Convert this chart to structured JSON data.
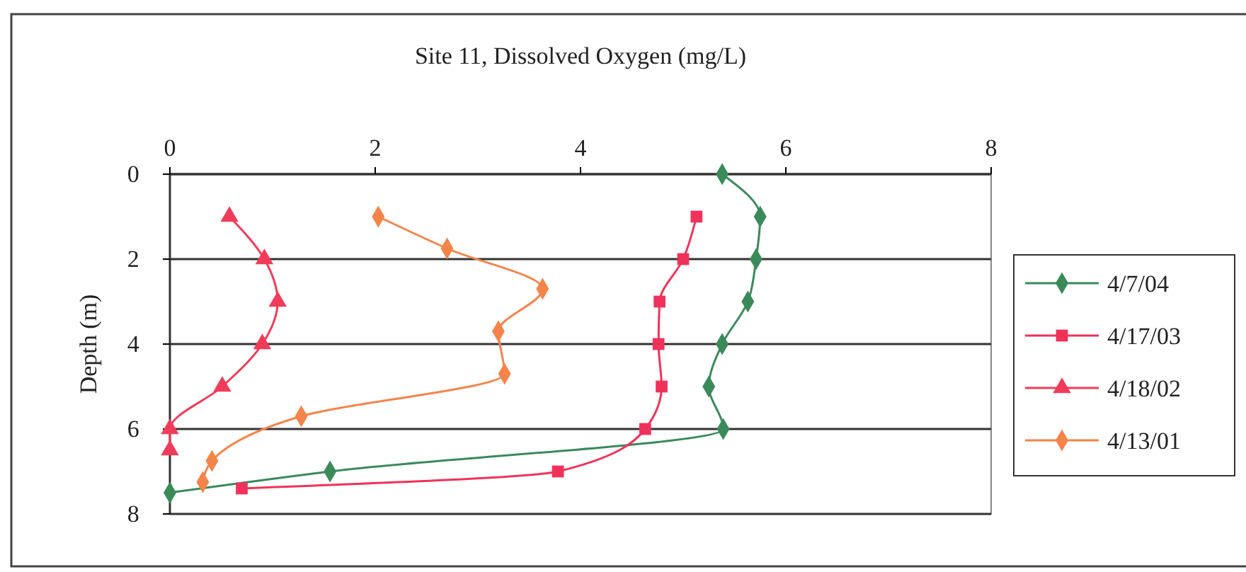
{
  "chart_data": {
    "type": "line",
    "title": "Site 11, Dissolved Oxygen (mg/L)",
    "ylabel": "Depth (m)",
    "xlim": [
      0,
      8
    ],
    "xticks": [
      0,
      2,
      4,
      6,
      8
    ],
    "ylim": [
      8,
      0
    ],
    "yticks": [
      0,
      2,
      4,
      6,
      8
    ],
    "grid": "y",
    "legend": "right",
    "series": [
      {
        "name": "4/7/04",
        "color": "#3a8a5a",
        "marker": "diamond",
        "x": [
          5.38,
          5.75,
          5.71,
          5.63,
          5.38,
          5.25,
          5.39,
          1.56,
          0
        ],
        "values": [
          0,
          1,
          2,
          3,
          4,
          5,
          6,
          7,
          7.5
        ]
      },
      {
        "name": "4/17/03",
        "color": "#f0325a",
        "marker": "square",
        "x": [
          5.13,
          5.0,
          4.77,
          4.76,
          4.79,
          4.63,
          3.78,
          0.7
        ],
        "values": [
          1,
          2,
          3,
          4,
          5,
          6,
          7,
          7.4
        ]
      },
      {
        "name": "4/18/02",
        "color": "#f03c5a",
        "marker": "triangle",
        "x": [
          0.58,
          0.92,
          1.05,
          0.9,
          0.51,
          0,
          0
        ],
        "values": [
          1,
          2,
          3,
          4,
          5,
          6,
          6.5
        ]
      },
      {
        "name": "4/13/01",
        "color": "#f5844a",
        "marker": "diamond",
        "x": [
          2.03,
          2.7,
          3.63,
          3.2,
          3.26,
          1.28,
          0.41,
          0.32
        ],
        "values": [
          1,
          1.75,
          2.7,
          3.7,
          4.7,
          5.7,
          6.75,
          7.25
        ]
      }
    ]
  }
}
